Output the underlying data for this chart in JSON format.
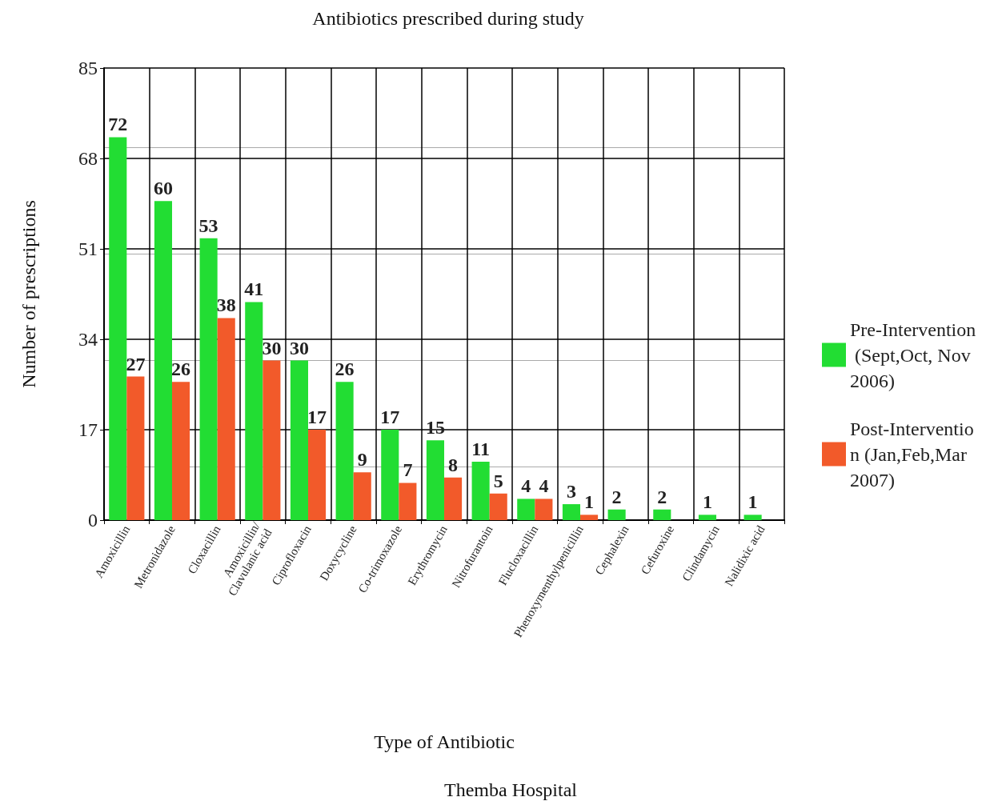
{
  "chart_data": {
    "type": "bar",
    "title": "Antibiotics prescribed during study",
    "xlabel": "Type of Antibiotic",
    "ylabel": "Number of prescriptions",
    "categories": [
      "Amoxicillin",
      "Metronidazole",
      "Cloxacillin",
      "Amoxicillin/\nClavulanic acid",
      "Ciprofloxacin",
      "Doxycycline",
      "Co-trimoxazole",
      "Erythromycin",
      "Nitrofurantoin",
      "Flucloxacillin",
      "Phenoxymenthylpenicillin",
      "Cephalexin",
      "Cefuroxine",
      "Clindamycin",
      "Nalidixic acid"
    ],
    "series": [
      {
        "name": "Pre-Intervention (Sept,Oct, Nov 2006)",
        "color": "#22dd33",
        "values": [
          72,
          60,
          53,
          41,
          30,
          26,
          17,
          15,
          11,
          4,
          3,
          2,
          2,
          1,
          1
        ]
      },
      {
        "name": "Post-Intervention (Jan,Feb,Mar 2007)",
        "color": "#f25a2a",
        "values": [
          27,
          26,
          38,
          30,
          17,
          9,
          7,
          8,
          5,
          4,
          1,
          null,
          null,
          null,
          null
        ]
      }
    ],
    "ylim": [
      0,
      85
    ],
    "yticks": [
      0,
      17,
      34,
      51,
      68,
      85
    ],
    "grid": true,
    "legend": "right",
    "data_labels": true,
    "annotations": [
      "Themba Hospital"
    ]
  }
}
